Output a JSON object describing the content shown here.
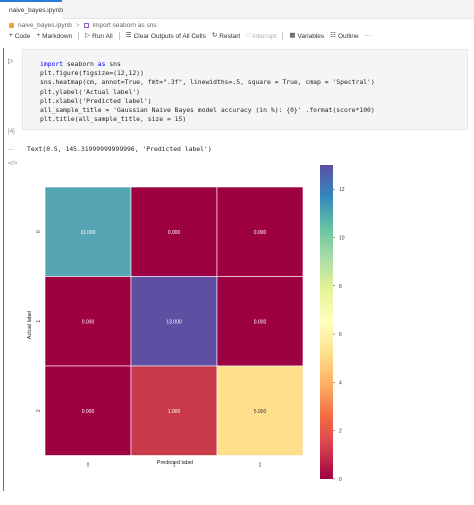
{
  "tab": {
    "label": "naive_bayes.ipynb"
  },
  "breadcrumb": {
    "file": "naive_bayes.ipynb",
    "sep": ">",
    "cell": "import seaborn as sns"
  },
  "toolbar": {
    "code": "Code",
    "markdown": "Markdown",
    "run_all": "Run All",
    "clear_outputs": "Clear Outputs of All Cells",
    "restart": "Restart",
    "interrupt": "Interrupt",
    "variables": "Variables",
    "outline": "Outline"
  },
  "cell": {
    "lines": [
      "import seaborn as sns",
      "plt.figure(figsize=(12,12))",
      "sns.heatmap(cm, annot=True, fmt=\".3f\", linewidths=.5, square = True, cmap = 'Spectral')",
      "plt.ylabel('Actual label')",
      "plt.xlabel('Predicted label')",
      "all_sample_title = 'Gaussian Naive Bayes model accuracy (in %): {0}' .format(score*100)",
      "plt.title(all_sample_title, size = 15)"
    ],
    "execution_count": "[4]"
  },
  "output": {
    "gutter": "...",
    "text": "Text(0.5, 145.31999999999996, 'Predicted label')",
    "figure_icon": "</>"
  },
  "chart_data": {
    "type": "heatmap",
    "xlabel": "Predicted label",
    "ylabel": "Actual label",
    "x_ticks": [
      "0",
      "1",
      "2"
    ],
    "y_ticks": [
      "0",
      "1",
      "2"
    ],
    "values": [
      [
        11,
        0,
        0
      ],
      [
        0,
        13,
        0
      ],
      [
        0,
        1,
        5
      ]
    ],
    "value_labels": [
      [
        "11.000",
        "0.000",
        "0.000"
      ],
      [
        "0.000",
        "13.000",
        "0.000"
      ],
      [
        "0.000",
        "1.000",
        "5.000"
      ]
    ],
    "cell_colors": [
      [
        "#55a5b5",
        "#9e0142",
        "#9e0142"
      ],
      [
        "#9e0142",
        "#5e4fa2",
        "#9e0142"
      ],
      [
        "#9e0142",
        "#c83a4a",
        "#fedf8b"
      ]
    ],
    "colorbar_ticks": [
      "0",
      "2",
      "4",
      "6",
      "8",
      "10",
      "12"
    ],
    "colorbar_range": [
      0,
      13
    ],
    "colormap": "Spectral"
  }
}
